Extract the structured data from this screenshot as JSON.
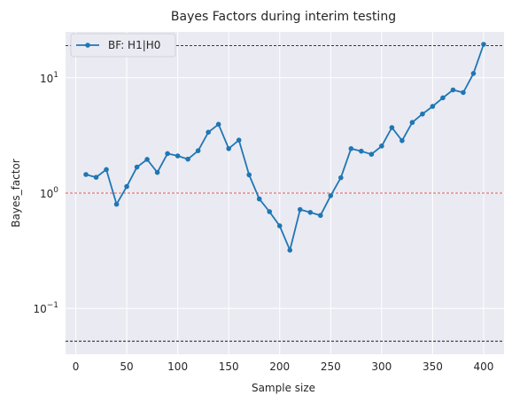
{
  "chart_data": {
    "type": "line",
    "title": "Bayes Factors during interim testing",
    "xlabel": "Sample size",
    "ylabel": "Bayes_factor",
    "x_scale": "linear",
    "y_scale": "log",
    "xlim": [
      -10,
      420
    ],
    "ylim": [
      0.04,
      25
    ],
    "x_ticks": [
      0,
      50,
      100,
      150,
      200,
      250,
      300,
      350,
      400
    ],
    "y_ticks": [
      {
        "value": 0.1,
        "label": "10",
        "exp": "−1"
      },
      {
        "value": 1,
        "label": "10",
        "exp": "0"
      },
      {
        "value": 10,
        "label": "10",
        "exp": "1"
      }
    ],
    "grid": true,
    "legend_position": "top-left",
    "series": [
      {
        "name": "BF: H1|H0",
        "color": "#1f77b4",
        "marker": "circle",
        "x": [
          10,
          20,
          30,
          40,
          50,
          60,
          70,
          80,
          90,
          100,
          110,
          120,
          130,
          140,
          150,
          160,
          170,
          180,
          190,
          200,
          210,
          220,
          230,
          240,
          250,
          260,
          270,
          280,
          290,
          300,
          310,
          320,
          330,
          340,
          350,
          360,
          370,
          380,
          390,
          400
        ],
        "y": [
          1.45,
          1.37,
          1.6,
          0.8,
          1.14,
          1.68,
          1.96,
          1.51,
          2.2,
          2.1,
          1.97,
          2.33,
          3.37,
          3.95,
          2.43,
          2.88,
          1.44,
          0.89,
          0.69,
          0.52,
          0.32,
          0.72,
          0.68,
          0.64,
          0.95,
          1.36,
          2.43,
          2.31,
          2.17,
          2.56,
          3.7,
          2.85,
          4.1,
          4.85,
          5.65,
          6.7,
          7.85,
          7.45,
          10.9,
          19.5
        ]
      }
    ],
    "reference_lines": [
      {
        "value": 19,
        "color": "#000000",
        "style": "dashed"
      },
      {
        "value": 1,
        "color": "#d62728",
        "style": "dashed"
      },
      {
        "value": 0.052,
        "color": "#000000",
        "style": "dashed"
      }
    ]
  }
}
